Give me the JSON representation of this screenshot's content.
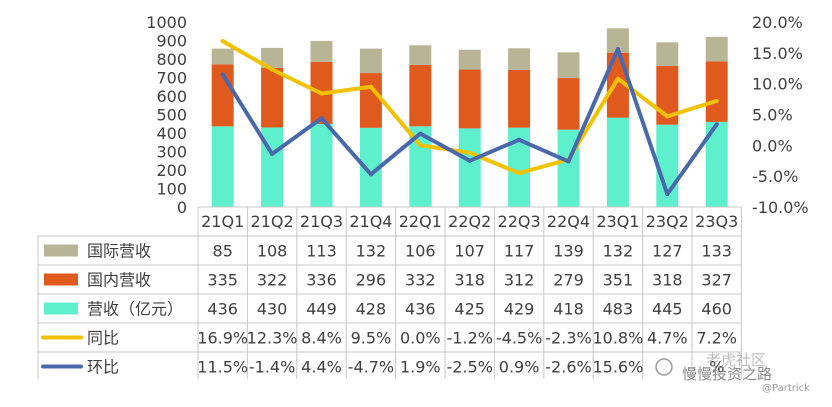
{
  "chart_data": {
    "type": "bar",
    "categories": [
      "21Q1",
      "21Q2",
      "21Q3",
      "21Q4",
      "22Q1",
      "22Q2",
      "22Q3",
      "22Q4",
      "23Q1",
      "23Q2",
      "23Q3"
    ],
    "series": [
      {
        "name": "国际营收",
        "kind": "stacked-bar",
        "color": "#b8b496",
        "values": [
          85,
          108,
          113,
          132,
          106,
          107,
          117,
          139,
          132,
          127,
          133
        ],
        "labels": [
          "85",
          "108",
          "113",
          "132",
          "106",
          "107",
          "117",
          "139",
          "132",
          "127",
          "133"
        ]
      },
      {
        "name": "国内营收",
        "kind": "stacked-bar",
        "color": "#e05a1e",
        "values": [
          335,
          322,
          336,
          296,
          332,
          318,
          312,
          279,
          351,
          318,
          327
        ],
        "labels": [
          "335",
          "322",
          "336",
          "296",
          "332",
          "318",
          "312",
          "279",
          "351",
          "318",
          "327"
        ]
      },
      {
        "name": "营收（亿元）",
        "kind": "stacked-bar",
        "color": "#5ef0cc",
        "values": [
          436,
          430,
          449,
          428,
          436,
          425,
          429,
          418,
          483,
          445,
          460
        ],
        "labels": [
          "436",
          "430",
          "449",
          "428",
          "436",
          "425",
          "429",
          "418",
          "483",
          "445",
          "460"
        ]
      },
      {
        "name": "同比",
        "kind": "line",
        "axis": "right",
        "color": "#f2c200",
        "values": [
          16.9,
          12.3,
          8.4,
          9.5,
          0.0,
          -1.2,
          -4.5,
          -2.3,
          10.8,
          4.7,
          7.2
        ],
        "labels": [
          "16.9%",
          "12.3%",
          "8.4%",
          "9.5%",
          "0.0%",
          "-1.2%",
          "-4.5%",
          "-2.3%",
          "10.8%",
          "4.7%",
          "7.2%"
        ]
      },
      {
        "name": "环比",
        "kind": "line",
        "axis": "right",
        "color": "#4a69ac",
        "values": [
          11.5,
          -1.4,
          4.4,
          -4.7,
          1.9,
          -2.5,
          0.9,
          -2.6,
          15.6,
          -7.9,
          3.4
        ],
        "labels": [
          "11.5%",
          "-1.4%",
          "4.4%",
          "-4.7%",
          "1.9%",
          "-2.5%",
          "0.9%",
          "-2.6%",
          "15.6%",
          "",
          "%"
        ]
      }
    ],
    "y_left": {
      "lim": [
        0,
        1000
      ],
      "ticks": [
        "0",
        "100",
        "200",
        "300",
        "400",
        "500",
        "600",
        "700",
        "800",
        "900",
        "1000"
      ]
    },
    "y_right": {
      "lim": [
        -10,
        20
      ],
      "ticks": [
        "20.0%",
        "15.0%",
        "10.0%",
        "5.0%",
        "0.0%",
        "-5.0%",
        "-10.0%"
      ]
    },
    "data_table": true,
    "grid": false
  },
  "watermark": {
    "main": "慢慢投资之路",
    "handle": "@Partrick",
    "overlay": "老虎社区"
  }
}
